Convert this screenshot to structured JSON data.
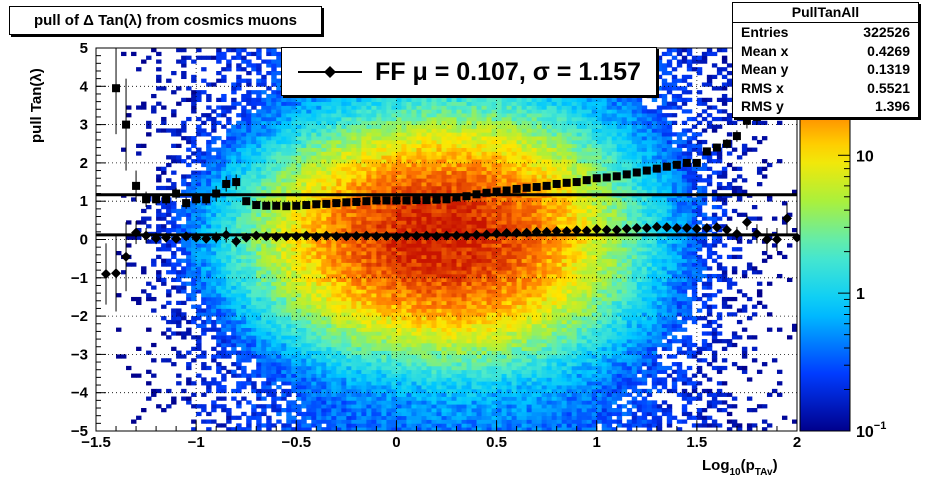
{
  "chart_data": {
    "type": "heatmap",
    "title": "pull of Δ Tan(λ) from cosmics muons",
    "xlabel": "Log10(pTAv)",
    "xlabel_main": "Log",
    "xlabel_sub": "10",
    "xlabel_paren": "(p",
    "xlabel_sub2": "TAv",
    "xlabel_close": ")",
    "ylabel": "pull Tan(λ)",
    "xlim": [
      -1.5,
      2
    ],
    "ylim": [
      -5,
      5
    ],
    "z_scale": "log",
    "zlim": [
      0.1,
      60
    ],
    "x_ticks": [
      "−1.5",
      "−1",
      "−0.5",
      "0",
      "0.5",
      "1",
      "1.5",
      "2"
    ],
    "y_ticks": [
      "−5",
      "−4",
      "−3",
      "−2",
      "−1",
      "0",
      "1",
      "2",
      "3",
      "4",
      "5"
    ],
    "z_ticks": [
      {
        "value": 0.1,
        "label": "10",
        "sup": "−1"
      },
      {
        "value": 1,
        "label": "1",
        "sup": ""
      },
      {
        "value": 10,
        "label": "10",
        "sup": ""
      }
    ],
    "grid": true,
    "stats": {
      "name": "PullTanAll",
      "entries": [
        {
          "label": "Entries",
          "value": "322526"
        },
        {
          "label": "Mean x",
          "value": "0.4269"
        },
        {
          "label": "Mean y",
          "value": "0.1319"
        },
        {
          "label": "RMS x",
          "value": "0.5521"
        },
        {
          "label": "RMS y",
          "value": "1.396"
        }
      ]
    },
    "legend": {
      "text": "FF μ =  0.107, σ =   1.157",
      "position": "top-center"
    },
    "fit_lines": {
      "mean": 0.12,
      "sigma": 1.17
    },
    "series": [
      {
        "marker": "diamond",
        "x": [
          -1.45,
          -1.4,
          -1.35,
          -1.3,
          -1.25,
          -1.2,
          -1.15,
          -1.1,
          -1.05,
          -1.0,
          -0.95,
          -0.9,
          -0.85,
          -0.8,
          -0.75,
          -0.7,
          -0.65,
          -0.6,
          -0.55,
          -0.5,
          -0.45,
          -0.4,
          -0.35,
          -0.3,
          -0.25,
          -0.2,
          -0.15,
          -0.1,
          -0.05,
          0.0,
          0.05,
          0.1,
          0.15,
          0.2,
          0.25,
          0.3,
          0.35,
          0.4,
          0.45,
          0.5,
          0.55,
          0.6,
          0.65,
          0.7,
          0.75,
          0.8,
          0.85,
          0.9,
          0.95,
          1.0,
          1.05,
          1.1,
          1.15,
          1.2,
          1.25,
          1.3,
          1.35,
          1.4,
          1.45,
          1.5,
          1.55,
          1.6,
          1.65,
          1.7,
          1.75,
          1.8,
          1.85,
          1.9,
          1.95,
          2.0
        ],
        "y": [
          -0.9,
          -0.88,
          -0.45,
          0.18,
          0.1,
          0.03,
          0.05,
          0.02,
          0.08,
          0.05,
          0.02,
          0.05,
          0.12,
          -0.05,
          0.05,
          0.1,
          0.08,
          0.07,
          0.08,
          0.08,
          0.1,
          0.07,
          0.1,
          0.08,
          0.08,
          0.09,
          0.1,
          0.08,
          0.09,
          0.07,
          0.1,
          0.09,
          0.1,
          0.08,
          0.1,
          0.1,
          0.1,
          0.12,
          0.13,
          0.15,
          0.17,
          0.17,
          0.18,
          0.2,
          0.2,
          0.22,
          0.22,
          0.24,
          0.23,
          0.27,
          0.25,
          0.25,
          0.28,
          0.3,
          0.3,
          0.33,
          0.32,
          0.3,
          0.3,
          0.28,
          0.3,
          0.32,
          0.25,
          0.15,
          0.45,
          0.15,
          0.0,
          0.0,
          0.55,
          0.05
        ],
        "err": [
          0.8,
          1.0,
          0.9,
          0.3,
          0.2,
          0.15,
          0.1,
          0.1,
          0.1,
          0.1,
          0.1,
          0.15,
          0.2,
          0.15,
          0.1,
          0.08,
          0.05,
          0.05,
          0.05,
          0.04,
          0.04,
          0.04,
          0.04,
          0.04,
          0.04,
          0.04,
          0.04,
          0.04,
          0.04,
          0.04,
          0.04,
          0.04,
          0.04,
          0.04,
          0.04,
          0.04,
          0.04,
          0.04,
          0.04,
          0.04,
          0.04,
          0.04,
          0.04,
          0.04,
          0.04,
          0.04,
          0.04,
          0.04,
          0.04,
          0.05,
          0.05,
          0.05,
          0.05,
          0.05,
          0.06,
          0.06,
          0.07,
          0.08,
          0.08,
          0.1,
          0.1,
          0.12,
          0.14,
          0.18,
          0.2,
          0.25,
          0.3,
          0.3,
          0.4,
          0.8
        ]
      },
      {
        "marker": "square",
        "x": [
          -1.45,
          -1.4,
          -1.35,
          -1.3,
          -1.25,
          -1.2,
          -1.15,
          -1.1,
          -1.05,
          -1.0,
          -0.95,
          -0.9,
          -0.85,
          -0.8,
          -0.75,
          -0.7,
          -0.65,
          -0.6,
          -0.55,
          -0.5,
          -0.45,
          -0.4,
          -0.35,
          -0.3,
          -0.25,
          -0.2,
          -0.15,
          -0.1,
          -0.05,
          0.0,
          0.05,
          0.1,
          0.15,
          0.2,
          0.25,
          0.3,
          0.35,
          0.4,
          0.45,
          0.5,
          0.55,
          0.6,
          0.65,
          0.7,
          0.75,
          0.8,
          0.85,
          0.9,
          0.95,
          1.0,
          1.05,
          1.1,
          1.15,
          1.2,
          1.25,
          1.3,
          1.35,
          1.4,
          1.45,
          1.5,
          1.55,
          1.6,
          1.65,
          1.7,
          1.75,
          1.8,
          1.85,
          1.9,
          1.95
        ],
        "y": [
          null,
          3.95,
          3.0,
          1.4,
          1.05,
          1.05,
          1.05,
          1.2,
          0.95,
          1.05,
          1.05,
          1.2,
          1.45,
          1.5,
          1.0,
          0.9,
          0.88,
          0.88,
          0.87,
          0.88,
          0.9,
          0.92,
          0.93,
          0.95,
          0.97,
          0.98,
          1.0,
          1.02,
          1.02,
          1.02,
          1.02,
          1.03,
          1.03,
          1.04,
          1.05,
          1.1,
          1.13,
          1.18,
          1.22,
          1.25,
          1.28,
          1.32,
          1.35,
          1.37,
          1.4,
          1.45,
          1.48,
          1.5,
          1.55,
          1.6,
          1.62,
          1.65,
          1.7,
          1.75,
          1.8,
          1.85,
          1.9,
          1.95,
          2.0,
          2.0,
          2.3,
          2.4,
          2.5,
          2.7,
          3.1,
          3.2,
          3.5,
          3.7,
          3.8
        ],
        "err": [
          null,
          1.2,
          1.2,
          0.4,
          0.2,
          0.15,
          0.15,
          0.15,
          0.15,
          0.15,
          0.15,
          0.2,
          0.2,
          0.2,
          0.1,
          0.05,
          0.04,
          0.03,
          0.03,
          0.03,
          0.03,
          0.03,
          0.03,
          0.03,
          0.03,
          0.03,
          0.03,
          0.03,
          0.03,
          0.03,
          0.03,
          0.03,
          0.03,
          0.03,
          0.03,
          0.03,
          0.03,
          0.03,
          0.03,
          0.03,
          0.03,
          0.03,
          0.03,
          0.03,
          0.03,
          0.03,
          0.03,
          0.04,
          0.04,
          0.04,
          0.04,
          0.04,
          0.05,
          0.05,
          0.05,
          0.05,
          0.06,
          0.06,
          0.07,
          0.08,
          0.1,
          0.1,
          0.12,
          0.15,
          0.2,
          0.2,
          0.25,
          0.3,
          0.3
        ]
      }
    ]
  }
}
